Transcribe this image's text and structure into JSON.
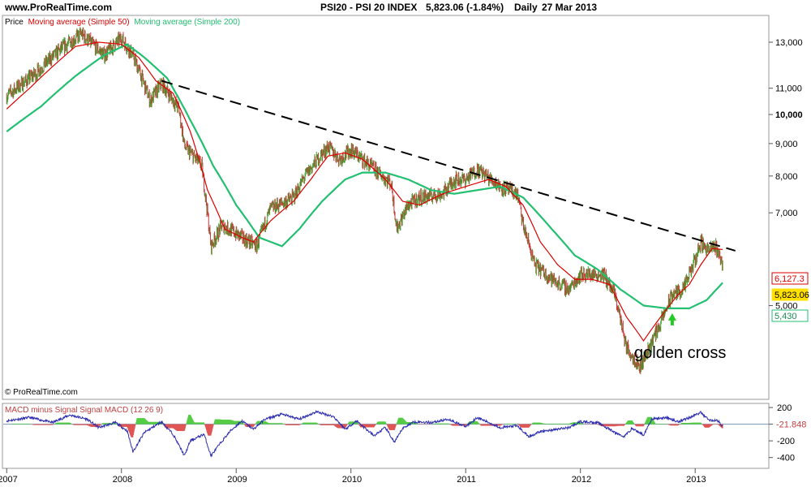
{
  "header": {
    "site": "www.ProRealTime.com",
    "title": "PSI20 - PSI 20 INDEX",
    "quote": "5,823.06 (-1.84%)",
    "period": "Daily",
    "date": "27 Mar 2013"
  },
  "legend": {
    "price": "Price",
    "ma50": "Moving average (Simple 50)",
    "ma200": "Moving average (Simple 200)"
  },
  "copyright": "© ProRealTime.com",
  "annotation": "golden cross",
  "colors": {
    "price_up": "#3aa02a",
    "price_down": "#c83a3a",
    "ma50": "#dd0000",
    "ma200": "#22c070",
    "trendline": "#000000",
    "macd": "#2c2cb0",
    "hist_pos": "#55cc44",
    "hist_neg": "#e05555",
    "arrow": "#22cc22",
    "last_price_bg": "#ffe000",
    "grid_border": "#999999"
  },
  "chart_data": [
    {
      "type": "line",
      "name": "price-panel",
      "y_scale": "log",
      "ylim": [
        3600,
        14200
      ],
      "y_ticks": [
        5000,
        7000,
        8000,
        9000,
        10000,
        11000,
        13000
      ],
      "y_tick_labels": [
        "5,000",
        "7,000",
        "8,000",
        "9,000",
        "10,000",
        "11,000",
        "13,000"
      ],
      "x_ticks": [
        2007,
        2008,
        2009,
        2010,
        2011,
        2012,
        2013
      ],
      "x_tick_labels": [
        "2007",
        "2008",
        "2009",
        "2010",
        "2011",
        "2012",
        "2013"
      ],
      "xlim": [
        2006.97,
        2013.55
      ],
      "price_anchors": [
        [
          2007.0,
          10700
        ],
        [
          2007.25,
          11600
        ],
        [
          2007.5,
          12800
        ],
        [
          2007.65,
          13400
        ],
        [
          2007.85,
          12400
        ],
        [
          2008.0,
          13200
        ],
        [
          2008.1,
          12400
        ],
        [
          2008.25,
          10500
        ],
        [
          2008.35,
          11200
        ],
        [
          2008.5,
          10200
        ],
        [
          2008.55,
          8900
        ],
        [
          2008.7,
          8300
        ],
        [
          2008.78,
          6200
        ],
        [
          2008.88,
          6700
        ],
        [
          2009.05,
          6400
        ],
        [
          2009.18,
          6200
        ],
        [
          2009.3,
          7100
        ],
        [
          2009.5,
          7400
        ],
        [
          2009.6,
          8000
        ],
        [
          2009.8,
          8900
        ],
        [
          2009.9,
          8500
        ],
        [
          2010.0,
          8800
        ],
        [
          2010.2,
          8200
        ],
        [
          2010.35,
          7800
        ],
        [
          2010.4,
          6600
        ],
        [
          2010.5,
          7200
        ],
        [
          2010.6,
          7400
        ],
        [
          2010.8,
          7500
        ],
        [
          2010.9,
          7900
        ],
        [
          2011.0,
          7900
        ],
        [
          2011.1,
          8200
        ],
        [
          2011.3,
          7700
        ],
        [
          2011.45,
          7500
        ],
        [
          2011.5,
          6700
        ],
        [
          2011.6,
          5800
        ],
        [
          2011.75,
          5500
        ],
        [
          2011.9,
          5300
        ],
        [
          2012.0,
          5600
        ],
        [
          2012.2,
          5600
        ],
        [
          2012.3,
          5200
        ],
        [
          2012.4,
          4300
        ],
        [
          2012.52,
          4000
        ],
        [
          2012.6,
          4300
        ],
        [
          2012.7,
          4700
        ],
        [
          2012.8,
          5200
        ],
        [
          2012.9,
          5300
        ],
        [
          2013.0,
          5900
        ],
        [
          2013.05,
          6300
        ],
        [
          2013.12,
          6100
        ],
        [
          2013.18,
          6200
        ],
        [
          2013.24,
          5823.06
        ]
      ],
      "ma50_anchors": [
        [
          2007.0,
          10200
        ],
        [
          2007.2,
          11000
        ],
        [
          2007.4,
          11900
        ],
        [
          2007.6,
          12800
        ],
        [
          2007.8,
          13000
        ],
        [
          2008.0,
          12900
        ],
        [
          2008.15,
          12300
        ],
        [
          2008.3,
          11300
        ],
        [
          2008.45,
          10800
        ],
        [
          2008.6,
          9400
        ],
        [
          2008.75,
          7600
        ],
        [
          2008.9,
          6600
        ],
        [
          2009.05,
          6400
        ],
        [
          2009.15,
          6300
        ],
        [
          2009.3,
          6800
        ],
        [
          2009.5,
          7300
        ],
        [
          2009.65,
          7900
        ],
        [
          2009.8,
          8600
        ],
        [
          2009.95,
          8700
        ],
        [
          2010.1,
          8500
        ],
        [
          2010.3,
          7900
        ],
        [
          2010.45,
          7300
        ],
        [
          2010.6,
          7200
        ],
        [
          2010.8,
          7500
        ],
        [
          2011.0,
          7700
        ],
        [
          2011.2,
          7900
        ],
        [
          2011.35,
          7700
        ],
        [
          2011.5,
          7200
        ],
        [
          2011.65,
          6300
        ],
        [
          2011.8,
          5800
        ],
        [
          2011.95,
          5500
        ],
        [
          2012.1,
          5500
        ],
        [
          2012.25,
          5400
        ],
        [
          2012.4,
          4800
        ],
        [
          2012.55,
          4400
        ],
        [
          2012.7,
          4800
        ],
        [
          2012.85,
          5200
        ],
        [
          2012.95,
          5400
        ],
        [
          2013.05,
          5800
        ],
        [
          2013.15,
          6150
        ],
        [
          2013.24,
          6127.3
        ]
      ],
      "ma200_anchors": [
        [
          2007.0,
          9400
        ],
        [
          2007.3,
          10300
        ],
        [
          2007.6,
          11500
        ],
        [
          2007.85,
          12400
        ],
        [
          2008.05,
          12900
        ],
        [
          2008.2,
          12300
        ],
        [
          2008.4,
          11400
        ],
        [
          2008.6,
          9800
        ],
        [
          2008.8,
          8300
        ],
        [
          2009.0,
          7200
        ],
        [
          2009.2,
          6400
        ],
        [
          2009.4,
          6200
        ],
        [
          2009.55,
          6600
        ],
        [
          2009.75,
          7300
        ],
        [
          2009.95,
          7900
        ],
        [
          2010.1,
          8100
        ],
        [
          2010.3,
          8100
        ],
        [
          2010.5,
          7900
        ],
        [
          2010.7,
          7600
        ],
        [
          2010.9,
          7500
        ],
        [
          2011.1,
          7600
        ],
        [
          2011.3,
          7700
        ],
        [
          2011.5,
          7400
        ],
        [
          2011.75,
          6600
        ],
        [
          2011.95,
          6000
        ],
        [
          2012.15,
          5700
        ],
        [
          2012.35,
          5300
        ],
        [
          2012.55,
          5000
        ],
        [
          2012.75,
          4950
        ],
        [
          2012.95,
          4950
        ],
        [
          2013.1,
          5100
        ],
        [
          2013.24,
          5430
        ]
      ],
      "trendline": [
        [
          2008.35,
          11300
        ],
        [
          2013.35,
          6100
        ]
      ],
      "last_labels": [
        {
          "text": "6,127.3",
          "value": 6127.3,
          "series": "ma50"
        },
        {
          "text": "5,823.06",
          "value": 5823.06,
          "series": "price"
        },
        {
          "text": "5,430",
          "value": 5430,
          "series": "ma200"
        }
      ],
      "golden_cross_x": 2012.8
    },
    {
      "type": "bar",
      "name": "macd-panel",
      "title": "MACD minus Signal Signal MACD (12 26 9)",
      "ylim": [
        -520,
        230
      ],
      "y_ticks": [
        200,
        -200,
        -400
      ],
      "y_tick_labels": [
        "200",
        "-200",
        "-400"
      ],
      "last_label": "-21.848",
      "macd_anchors": [
        [
          2007.0,
          40
        ],
        [
          2007.2,
          80
        ],
        [
          2007.4,
          20
        ],
        [
          2007.55,
          110
        ],
        [
          2007.7,
          60
        ],
        [
          2007.8,
          -40
        ],
        [
          2007.95,
          20
        ],
        [
          2008.05,
          -80
        ],
        [
          2008.1,
          -330
        ],
        [
          2008.2,
          -100
        ],
        [
          2008.35,
          30
        ],
        [
          2008.45,
          -120
        ],
        [
          2008.55,
          -380
        ],
        [
          2008.6,
          -200
        ],
        [
          2008.72,
          -120
        ],
        [
          2008.78,
          -380
        ],
        [
          2008.85,
          -250
        ],
        [
          2008.95,
          -80
        ],
        [
          2009.05,
          40
        ],
        [
          2009.15,
          -60
        ],
        [
          2009.25,
          60
        ],
        [
          2009.4,
          120
        ],
        [
          2009.55,
          60
        ],
        [
          2009.7,
          150
        ],
        [
          2009.85,
          90
        ],
        [
          2009.95,
          -60
        ],
        [
          2010.05,
          40
        ],
        [
          2010.2,
          -140
        ],
        [
          2010.3,
          -40
        ],
        [
          2010.38,
          -220
        ],
        [
          2010.45,
          -50
        ],
        [
          2010.55,
          30
        ],
        [
          2010.7,
          20
        ],
        [
          2010.85,
          60
        ],
        [
          2011.0,
          -30
        ],
        [
          2011.1,
          80
        ],
        [
          2011.3,
          -40
        ],
        [
          2011.45,
          -20
        ],
        [
          2011.55,
          -150
        ],
        [
          2011.65,
          -90
        ],
        [
          2011.75,
          -70
        ],
        [
          2011.9,
          -40
        ],
        [
          2012.0,
          30
        ],
        [
          2012.15,
          20
        ],
        [
          2012.3,
          -100
        ],
        [
          2012.38,
          -150
        ],
        [
          2012.45,
          -50
        ],
        [
          2012.55,
          -130
        ],
        [
          2012.62,
          60
        ],
        [
          2012.75,
          80
        ],
        [
          2012.85,
          30
        ],
        [
          2012.95,
          80
        ],
        [
          2013.05,
          140
        ],
        [
          2013.12,
          50
        ],
        [
          2013.2,
          40
        ],
        [
          2013.24,
          -21.848
        ]
      ]
    }
  ]
}
